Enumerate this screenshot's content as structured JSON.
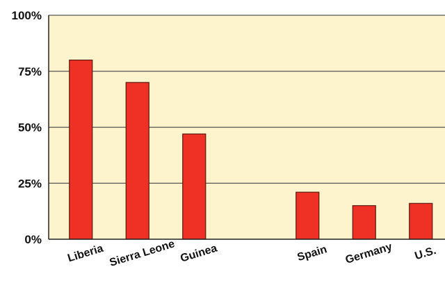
{
  "colors": {
    "plot_background": "#fdf3cc",
    "bar_fill": "#ee3124",
    "bar_stroke": "#5a1a10",
    "grid": "#555555",
    "axis": "#222222"
  },
  "chart_data": {
    "type": "bar",
    "title": "",
    "xlabel": "",
    "ylabel": "",
    "categories": [
      "Liberia",
      "Sierra Leone",
      "Guinea",
      "",
      "Spain",
      "Germany",
      "U.S."
    ],
    "values": [
      80,
      70,
      47,
      null,
      21,
      15,
      16
    ],
    "ylim": [
      0,
      100
    ],
    "yticks": [
      0,
      25,
      50,
      75,
      100
    ],
    "ytick_labels": [
      "0%",
      "25%",
      "50%",
      "75%",
      "100%"
    ],
    "grid": true,
    "legend": "none"
  }
}
